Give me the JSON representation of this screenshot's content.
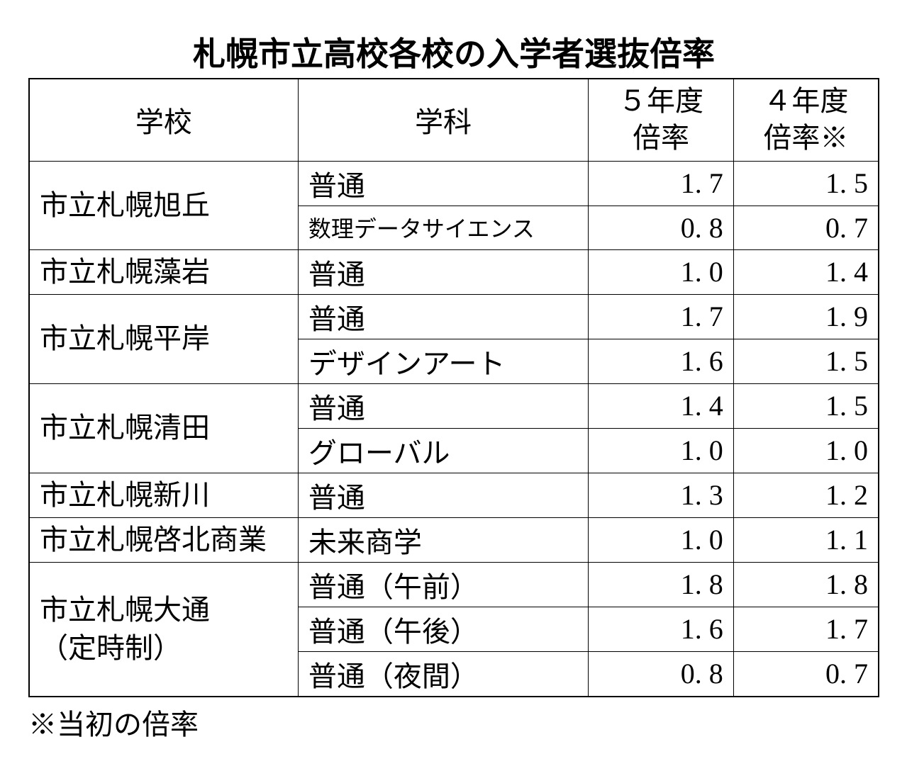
{
  "title": "札幌市立高校各校の入学者選抜倍率",
  "columns": {
    "school": "学校",
    "department": "学科",
    "rate5": "５年度\n倍率",
    "rate4": "４年度\n倍率※"
  },
  "schools": [
    {
      "name": "市立札幌旭丘",
      "departments": [
        {
          "name": "普通",
          "small": false,
          "rate5": "1. 7",
          "rate4": "1. 5"
        },
        {
          "name": "数理データサイエンス",
          "small": true,
          "rate5": "0. 8",
          "rate4": "0. 7"
        }
      ]
    },
    {
      "name": "市立札幌藻岩",
      "departments": [
        {
          "name": "普通",
          "small": false,
          "rate5": "1. 0",
          "rate4": "1. 4"
        }
      ]
    },
    {
      "name": "市立札幌平岸",
      "departments": [
        {
          "name": "普通",
          "small": false,
          "rate5": "1. 7",
          "rate4": "1. 9"
        },
        {
          "name": "デザインアート",
          "small": false,
          "rate5": "1. 6",
          "rate4": "1. 5"
        }
      ]
    },
    {
      "name": "市立札幌清田",
      "departments": [
        {
          "name": "普通",
          "small": false,
          "rate5": "1. 4",
          "rate4": "1. 5"
        },
        {
          "name": "グローバル",
          "small": false,
          "rate5": "1. 0",
          "rate4": "1. 0"
        }
      ]
    },
    {
      "name": "市立札幌新川",
      "departments": [
        {
          "name": "普通",
          "small": false,
          "rate5": "1. 3",
          "rate4": "1. 2"
        }
      ]
    },
    {
      "name": "市立札幌啓北商業",
      "departments": [
        {
          "name": "未来商学",
          "small": false,
          "rate5": "1. 0",
          "rate4": "1. 1"
        }
      ]
    },
    {
      "name": "市立札幌大通\n（定時制）",
      "departments": [
        {
          "name": "普通（午前）",
          "small": false,
          "rate5": "1. 8",
          "rate4": "1. 8"
        },
        {
          "name": "普通（午後）",
          "small": false,
          "rate5": "1. 6",
          "rate4": "1. 7"
        },
        {
          "name": "普通（夜間）",
          "small": false,
          "rate5": "0. 8",
          "rate4": "0. 7"
        }
      ]
    }
  ],
  "note": "※当初の倍率",
  "style": {
    "border_color": "#000000",
    "background_color": "#ffffff",
    "text_color": "#000000",
    "title_fontsize": 46,
    "header_fontsize": 40,
    "cell_fontsize": 40,
    "small_dept_fontsize": 32,
    "note_fontsize": 40,
    "column_widths": {
      "school": 380,
      "dept": 410,
      "rate": 205
    },
    "header_row_height": 116,
    "body_row_height": 62
  }
}
